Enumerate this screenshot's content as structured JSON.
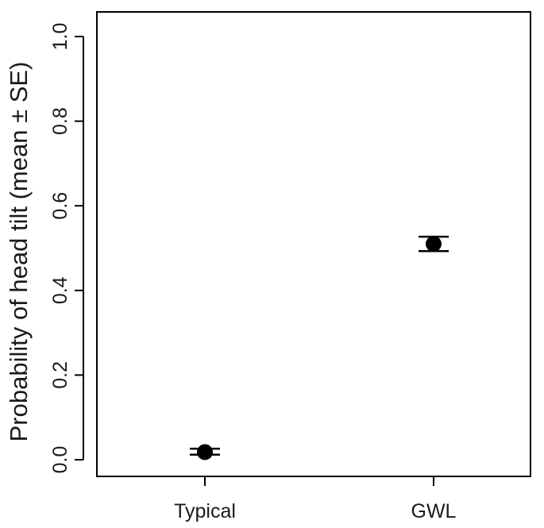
{
  "chart_data": {
    "type": "scatter",
    "title": "",
    "xlabel": "",
    "ylabel": "Probability of head tilt (mean ± SE)",
    "categories": [
      "Typical",
      "GWL"
    ],
    "series": [
      {
        "values": [
          0.018,
          0.51
        ],
        "se_lower": [
          0.012,
          0.493
        ],
        "se_upper": [
          0.026,
          0.527
        ]
      }
    ],
    "yticks": [
      "0.0",
      "0.2",
      "0.4",
      "0.6",
      "0.8",
      "1.0"
    ],
    "ylim": [
      0,
      1
    ],
    "grid": false,
    "colors": {
      "points": "#000000",
      "axes": "#000000"
    }
  }
}
